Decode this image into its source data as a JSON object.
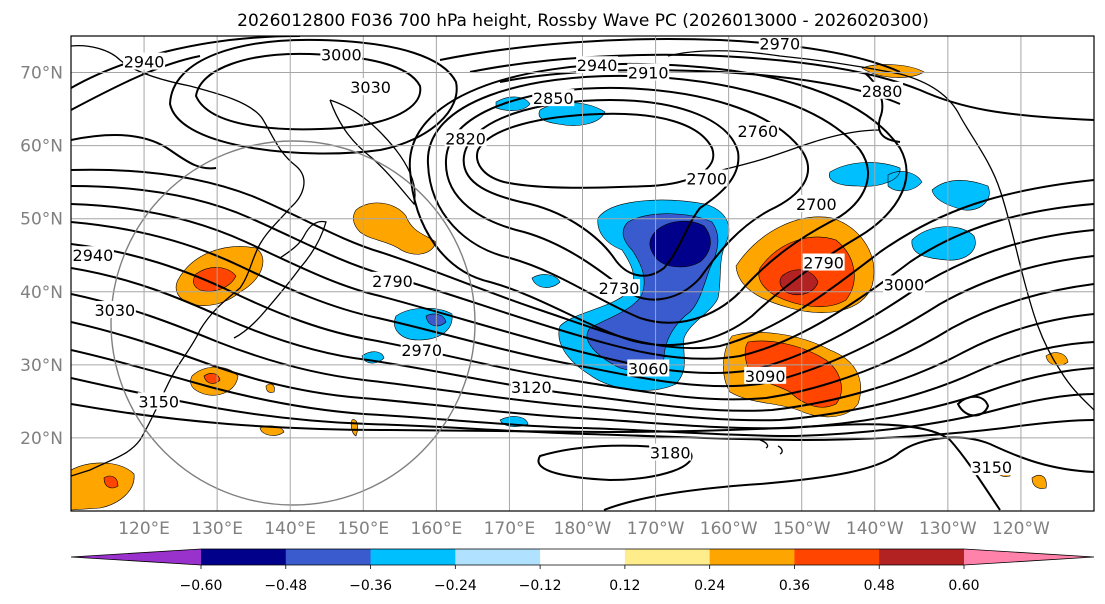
{
  "title": "2026012800 F036 700 hPa height, Rossby Wave PC (2026013000 - 2026020300)",
  "map": {
    "projection": "cylindrical",
    "lon_range": [
      110,
      250
    ],
    "lat_range": [
      10,
      75
    ],
    "gridlines": true,
    "coastlines": true,
    "x_ticks": [
      {
        "lon": 120,
        "label": "120°E"
      },
      {
        "lon": 130,
        "label": "130°E"
      },
      {
        "lon": 140,
        "label": "140°E"
      },
      {
        "lon": 150,
        "label": "150°E"
      },
      {
        "lon": 160,
        "label": "160°E"
      },
      {
        "lon": 170,
        "label": "170°E"
      },
      {
        "lon": 180,
        "label": "180°W"
      },
      {
        "lon": 190,
        "label": "170°W"
      },
      {
        "lon": 200,
        "label": "160°W"
      },
      {
        "lon": 210,
        "label": "150°W"
      },
      {
        "lon": 220,
        "label": "140°W"
      },
      {
        "lon": 230,
        "label": "130°W"
      },
      {
        "lon": 240,
        "label": "120°W"
      }
    ],
    "y_ticks": [
      {
        "lat": 20,
        "label": "20°N"
      },
      {
        "lat": 30,
        "label": "30°N"
      },
      {
        "lat": 40,
        "label": "40°N"
      },
      {
        "lat": 50,
        "label": "50°N"
      },
      {
        "lat": 60,
        "label": "60°N"
      },
      {
        "lat": 70,
        "label": "70°N"
      }
    ]
  },
  "contour_labels": [
    {
      "text": "2940",
      "lon": 120,
      "lat": 71.5
    },
    {
      "text": "3000",
      "lon": 147,
      "lat": 72.5
    },
    {
      "text": "3030",
      "lon": 151,
      "lat": 68
    },
    {
      "text": "2970",
      "lon": 207,
      "lat": 74
    },
    {
      "text": "2940",
      "lon": 182,
      "lat": 71
    },
    {
      "text": "2910",
      "lon": 189,
      "lat": 70
    },
    {
      "text": "2850",
      "lon": 176,
      "lat": 66.5
    },
    {
      "text": "2880",
      "lon": 221,
      "lat": 67.5
    },
    {
      "text": "2820",
      "lon": 164,
      "lat": 61
    },
    {
      "text": "2760",
      "lon": 204,
      "lat": 62
    },
    {
      "text": "2700",
      "lon": 197,
      "lat": 55.5
    },
    {
      "text": "2700",
      "lon": 212,
      "lat": 52
    },
    {
      "text": "2790",
      "lon": 154,
      "lat": 41.5
    },
    {
      "text": "2730",
      "lon": 185,
      "lat": 40.5
    },
    {
      "text": "2790",
      "lon": 213,
      "lat": 44
    },
    {
      "text": "3000",
      "lon": 224,
      "lat": 41
    },
    {
      "text": "2940",
      "lon": 113,
      "lat": 45
    },
    {
      "text": "3030",
      "lon": 116,
      "lat": 37.5
    },
    {
      "text": "2970",
      "lon": 158,
      "lat": 32
    },
    {
      "text": "3060",
      "lon": 189,
      "lat": 29.5
    },
    {
      "text": "3090",
      "lon": 205,
      "lat": 28.5
    },
    {
      "text": "3120",
      "lon": 173,
      "lat": 27
    },
    {
      "text": "3150",
      "lon": 122,
      "lat": 25
    },
    {
      "text": "3180",
      "lon": 192,
      "lat": 18
    },
    {
      "text": "3150",
      "lon": 236,
      "lat": 16
    }
  ],
  "colorbar": {
    "levels": [
      -0.72,
      -0.6,
      -0.48,
      -0.36,
      -0.24,
      -0.12,
      0.12,
      0.24,
      0.36,
      0.48,
      0.6,
      0.72
    ],
    "tick_labels": [
      "−0.60",
      "−0.48",
      "−0.36",
      "−0.24",
      "−0.12",
      "0.12",
      "0.24",
      "0.36",
      "0.48",
      "0.60"
    ],
    "colors": [
      "#9932cc",
      "#00008b",
      "#3a5bcd",
      "#00bfff",
      "#b0e2ff",
      "#ffffff",
      "#ffec8b",
      "#ffa500",
      "#ff4500",
      "#b22222",
      "#ff82ab"
    ],
    "extend": "both"
  },
  "colors": {
    "grid": "#a6a6a6",
    "frame": "#000000",
    "coast": "#000000",
    "circle": "#808080"
  }
}
